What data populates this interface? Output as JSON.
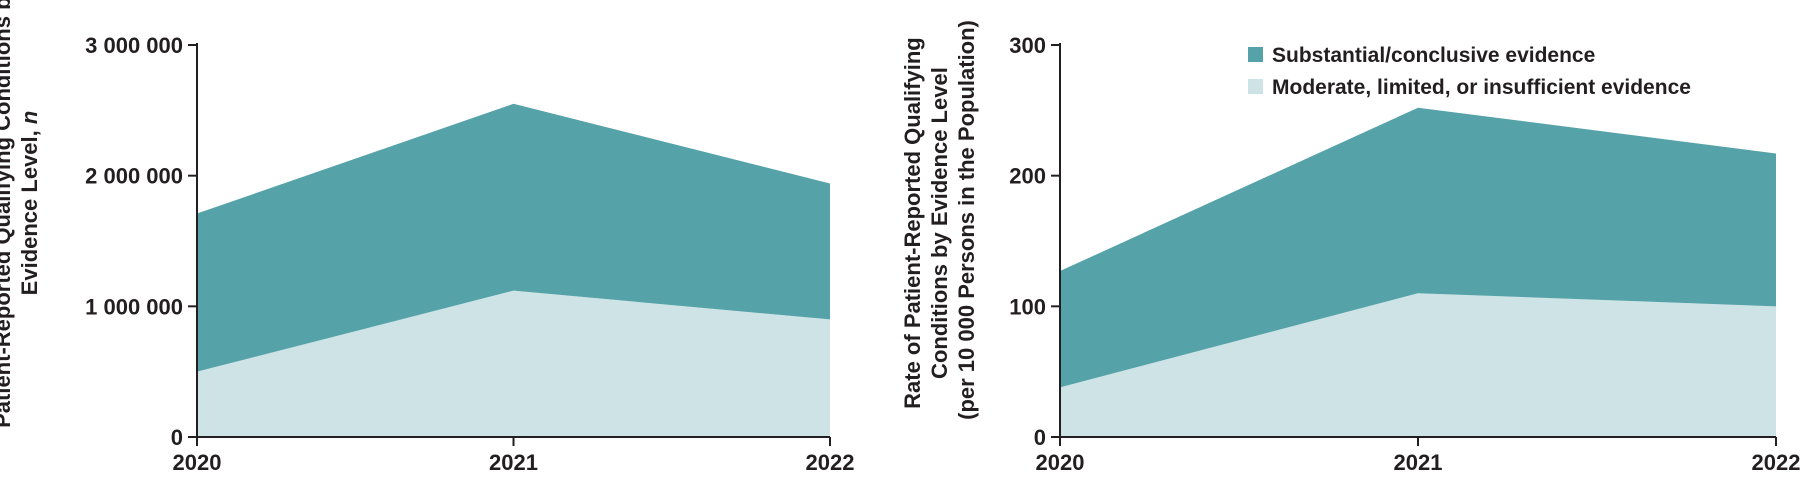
{
  "colors": {
    "substantial": "#55a3a9",
    "moderate": "#cde3e6",
    "axis": "#231f20"
  },
  "chart_data": [
    {
      "type": "area",
      "stacked": true,
      "x": [
        "2020",
        "2021",
        "2022"
      ],
      "ylabel": [
        "Patient-Reported Qualifying Conditions by",
        "Evidence Level, ",
        "n"
      ],
      "ylim": [
        0,
        3000000
      ],
      "yticks": [
        0,
        1000000,
        2000000,
        3000000
      ],
      "ytick_labels": [
        "0",
        "1 000 000",
        "2 000 000",
        "3 000 000"
      ],
      "series": [
        {
          "name": "Moderate, limited, or insufficient evidence",
          "values": [
            500000,
            1120000,
            900000
          ]
        },
        {
          "name": "Substantial/conclusive evidence",
          "values": [
            1210000,
            1430000,
            1040000
          ]
        }
      ]
    },
    {
      "type": "area",
      "stacked": true,
      "x": [
        "2020",
        "2021",
        "2022"
      ],
      "ylabel": [
        "Rate of Patient-Reported Qualifying",
        "Conditions by Evidence Level",
        "(per 10 000 Persons in the Population)"
      ],
      "ylim": [
        0,
        300
      ],
      "yticks": [
        0,
        100,
        200,
        300
      ],
      "ytick_labels": [
        "0",
        "100",
        "200",
        "300"
      ],
      "series": [
        {
          "name": "Moderate, limited, or insufficient evidence",
          "values": [
            38,
            110,
            100
          ]
        },
        {
          "name": "Substantial/conclusive evidence",
          "values": [
            89,
            142,
            117
          ]
        }
      ],
      "legend": {
        "position": "top-right",
        "items": [
          "Substantial/conclusive evidence",
          "Moderate, limited, or insufficient evidence"
        ]
      }
    }
  ]
}
